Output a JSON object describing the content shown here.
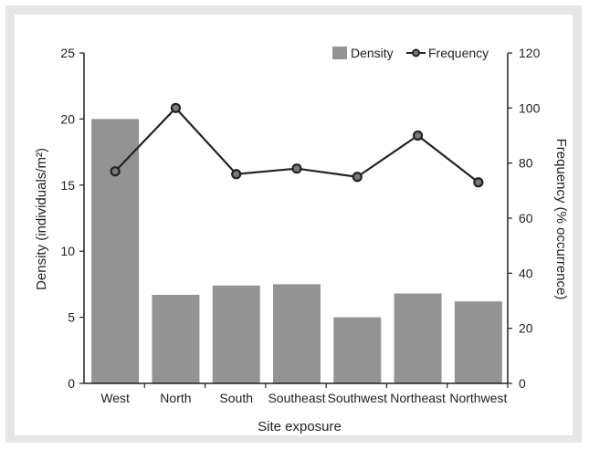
{
  "chart_data": {
    "type": "bar+line",
    "categories": [
      "West",
      "North",
      "South",
      "Southeast",
      "Southwest",
      "Northeast",
      "Northwest"
    ],
    "series": [
      {
        "name": "Density",
        "type": "bar",
        "axis": "left",
        "values": [
          20.0,
          6.7,
          7.4,
          7.5,
          5.0,
          6.8,
          6.2
        ]
      },
      {
        "name": "Frequency",
        "type": "line",
        "axis": "right",
        "values": [
          77,
          100,
          76,
          78,
          75,
          90,
          73
        ]
      }
    ],
    "xlabel": "Site exposure",
    "ylabel_left": "Density (individuals/m²)",
    "ylabel_right": "Frequency (% occurrence)",
    "ylim_left": [
      0,
      25
    ],
    "ylim_right": [
      0,
      120
    ],
    "yticks_left": [
      0,
      5,
      10,
      15,
      20,
      25
    ],
    "yticks_right": [
      0,
      20,
      40,
      60,
      80,
      100,
      120
    ],
    "grid": false,
    "legend_position": "top-right",
    "colors": {
      "bar": "#939393",
      "line": "#222222",
      "marker_center": "#7a7a7a",
      "frame": "#e6e6e6"
    }
  }
}
